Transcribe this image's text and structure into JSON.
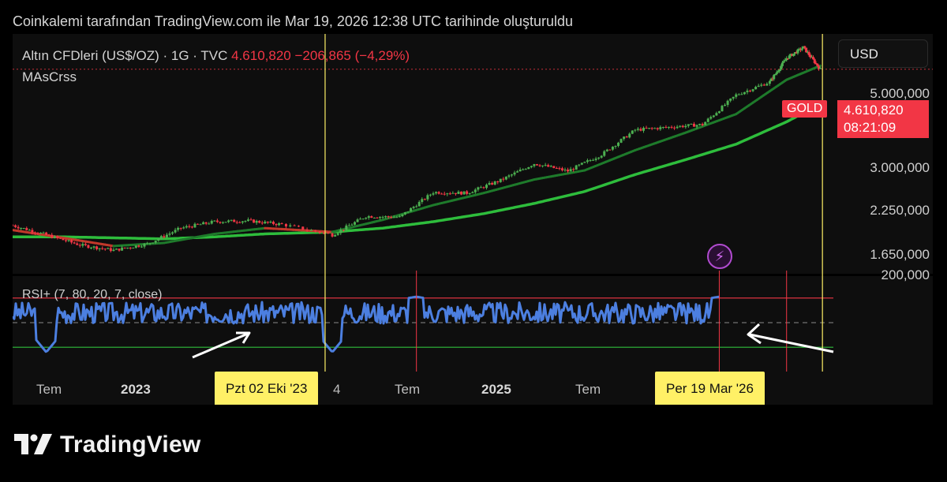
{
  "header": {
    "credit": "Coinkalemi tarafından TradingView.com ile Mar 19, 2026 12:38 UTC tarihinde oluşturuldu"
  },
  "main_chart": {
    "symbol": "Altın CFDleri (US$/OZ) · 1G · TVC",
    "last_price": "4.610,820",
    "change": "−206,865 (−4,29%)",
    "indicator": "MAsCrss",
    "currency_button": "USD",
    "price_ticks": [
      "5.000,000",
      "3.000,000",
      "2.250,000",
      "1.650,000"
    ],
    "gold_label": "GOLD",
    "price_badge": "4.610,820",
    "countdown": "08:21:09"
  },
  "rsi_panel": {
    "label": "RSI+ (7, 80, 20, 7, close)",
    "top_tick": "200,000"
  },
  "time_axis": {
    "labels": [
      "Tem",
      "2023",
      "Tem",
      "2025",
      "Tem"
    ],
    "bold_labels": [
      "2023",
      "2025"
    ],
    "partial_label": "4",
    "cursor_left": "Pzt 02 Eki '23",
    "cursor_right": "Per 19 Mar '26"
  },
  "brand": {
    "name": "TradingView"
  },
  "colors": {
    "background": "#0e0e0e",
    "up": "#4caf50",
    "down": "#f23645",
    "ma_long": "#2ebd3c",
    "ma_short": "#1e7a2b",
    "rsi": "#4c7fe0",
    "cursor": "#fff066",
    "overbought_line": "#f23645",
    "oversold_line": "#2ebd3c"
  },
  "chart_data": {
    "type": "line",
    "title": "Altın CFDleri (US$/OZ) · 1G · TVC",
    "y_scale": "log",
    "x_range": [
      "2022-03",
      "2026-05"
    ],
    "ylim": [
      1500,
      5600
    ],
    "series": [
      {
        "name": "price",
        "x": [
          "2022-03",
          "2022-05",
          "2022-07",
          "2022-09",
          "2022-11",
          "2023-01",
          "2023-03",
          "2023-05",
          "2023-07",
          "2023-10",
          "2023-12",
          "2024-02",
          "2024-04",
          "2024-06",
          "2024-08",
          "2024-10",
          "2024-12",
          "2025-02",
          "2025-04",
          "2025-06",
          "2025-08",
          "2025-10",
          "2025-12",
          "2026-01",
          "2026-02",
          "2026-03"
        ],
        "values": [
          1950,
          1850,
          1750,
          1700,
          1760,
          1920,
          1990,
          2000,
          1960,
          1850,
          2050,
          2040,
          2340,
          2330,
          2500,
          2740,
          2630,
          2880,
          3300,
          3350,
          3400,
          4000,
          4300,
          4900,
          5200,
          4610
        ]
      },
      {
        "name": "MA short",
        "x": [
          "2022-03",
          "2022-06",
          "2022-09",
          "2022-12",
          "2023-03",
          "2023-06",
          "2023-10",
          "2024-01",
          "2024-04",
          "2024-07",
          "2024-10",
          "2025-01",
          "2025-04",
          "2025-07",
          "2025-10",
          "2026-01",
          "2026-03"
        ],
        "values": [
          1900,
          1820,
          1740,
          1770,
          1860,
          1920,
          1880,
          2010,
          2180,
          2330,
          2510,
          2640,
          2950,
          3250,
          3600,
          4350,
          4700
        ]
      },
      {
        "name": "MA long",
        "x": [
          "2022-03",
          "2022-06",
          "2022-09",
          "2022-12",
          "2023-03",
          "2023-06",
          "2023-10",
          "2024-01",
          "2024-04",
          "2024-07",
          "2024-10",
          "2025-01",
          "2025-04",
          "2025-07",
          "2025-10",
          "2026-01",
          "2026-03"
        ],
        "values": [
          1830,
          1830,
          1820,
          1810,
          1830,
          1860,
          1880,
          1920,
          1990,
          2080,
          2200,
          2350,
          2580,
          2800,
          3050,
          3450,
          3800
        ]
      }
    ],
    "rsi": {
      "overbought": 80,
      "oversold": 20,
      "oversold_touches": [
        "2022-05",
        "2023-10",
        "2026-03"
      ],
      "overbought_touches": [
        "2024-03",
        "2025-09",
        "2026-01"
      ]
    },
    "cursors": [
      "2023-10-02",
      "2026-03-19"
    ]
  }
}
